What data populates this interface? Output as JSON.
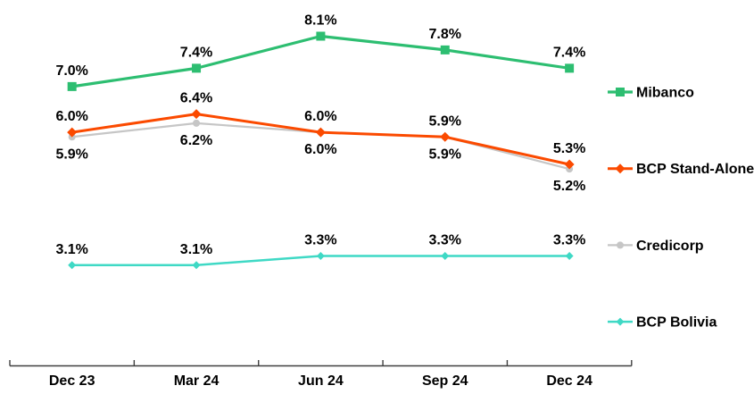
{
  "chart_data": {
    "type": "line",
    "categories": [
      "Dec 23",
      "Mar 24",
      "Jun 24",
      "Sep 24",
      "Dec 24"
    ],
    "series": [
      {
        "name": "Mibanco",
        "values": [
          7.0,
          7.4,
          8.1,
          7.8,
          7.4
        ],
        "color": "#2DBE71",
        "marker": "square",
        "marker_size": 10,
        "line_width": 3.2,
        "label_position": "above"
      },
      {
        "name": "BCP Stand-Alone",
        "values": [
          6.0,
          6.4,
          6.0,
          5.9,
          5.3
        ],
        "color": "#FB4A00",
        "marker": "diamond",
        "marker_size": 11,
        "line_width": 3.0,
        "label_position": "above"
      },
      {
        "name": "Credicorp",
        "values": [
          5.9,
          6.2,
          6.0,
          5.9,
          5.2
        ],
        "color": "#C6C6C6",
        "marker": "circle",
        "marker_size": 8,
        "line_width": 2.2,
        "label_position": "below"
      },
      {
        "name": "BCP Bolivia",
        "values": [
          3.1,
          3.1,
          3.3,
          3.3,
          3.3
        ],
        "color": "#3FD9C5",
        "marker": "diamond",
        "marker_size": 9,
        "line_width": 2.5,
        "label_position": "above"
      }
    ],
    "data_label_suffix": "%",
    "data_label_decimals": 1,
    "ylim": [
      0.9,
      8.5
    ],
    "grid": false,
    "legend_position": "right",
    "axis_color": "#3F3F3F",
    "text_color": "#000000",
    "background": "#FFFFFF",
    "title": "",
    "xlabel": "",
    "ylabel": ""
  }
}
